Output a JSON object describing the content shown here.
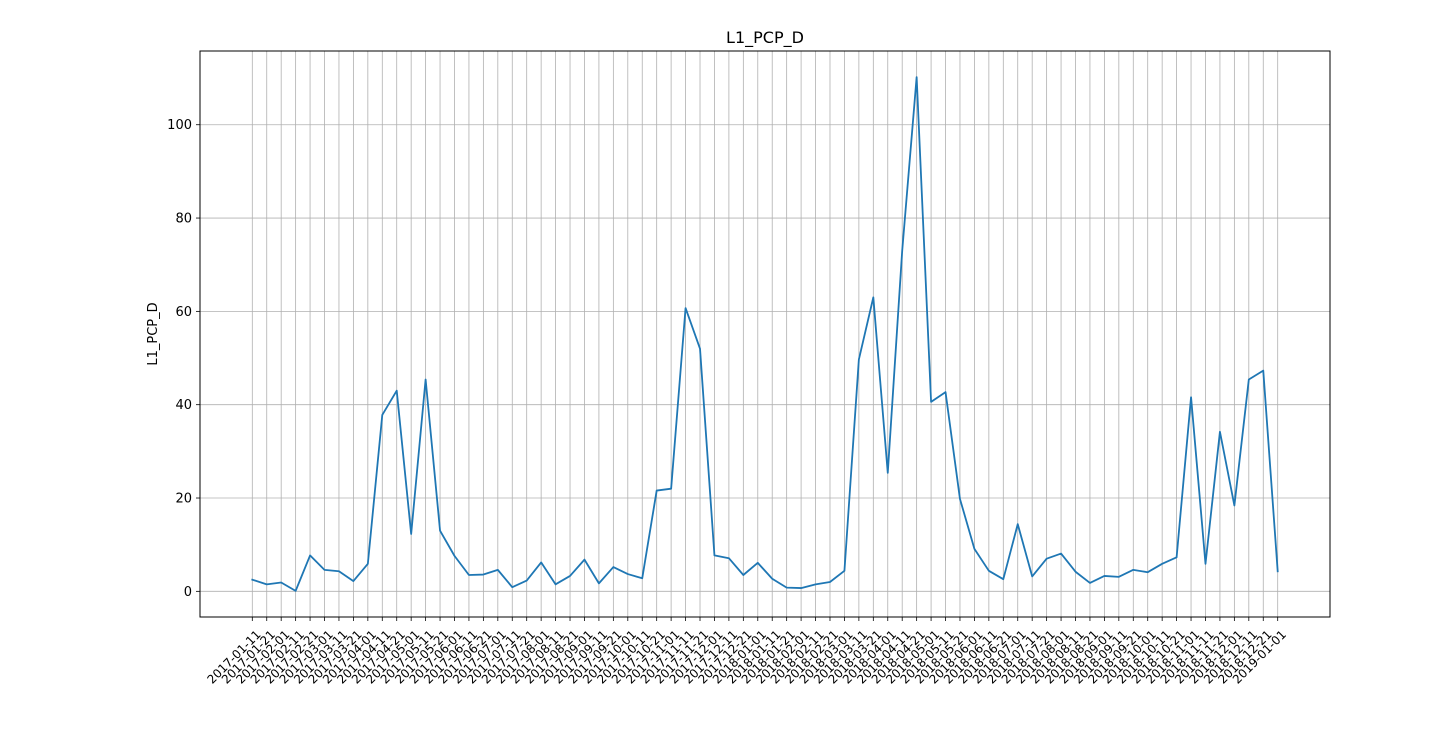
{
  "chart_data": {
    "type": "line",
    "title": "L1_PCP_D",
    "xlabel": "",
    "ylabel": "L1_PCP_D",
    "ylim": [
      -5.5,
      115.8
    ],
    "yticks": [
      0,
      20,
      40,
      60,
      80,
      100
    ],
    "grid": true,
    "line_color": "#1f77b4",
    "categories": [
      "2017-01-11",
      "2017-01-21",
      "2017-02-01",
      "2017-02-11",
      "2017-02-21",
      "2017-03-01",
      "2017-03-11",
      "2017-03-21",
      "2017-04-01",
      "2017-04-11",
      "2017-04-21",
      "2017-05-01",
      "2017-05-11",
      "2017-05-21",
      "2017-06-01",
      "2017-06-11",
      "2017-06-21",
      "2017-07-01",
      "2017-07-11",
      "2017-07-21",
      "2017-08-01",
      "2017-08-11",
      "2017-08-21",
      "2017-09-01",
      "2017-09-11",
      "2017-09-21",
      "2017-10-01",
      "2017-10-11",
      "2017-10-21",
      "2017-11-01",
      "2017-11-11",
      "2017-11-21",
      "2017-12-01",
      "2017-12-11",
      "2017-12-21",
      "2018-01-01",
      "2018-01-11",
      "2018-01-21",
      "2018-02-01",
      "2018-02-11",
      "2018-02-21",
      "2018-03-01",
      "2018-03-11",
      "2018-03-21",
      "2018-04-01",
      "2018-04-11",
      "2018-04-21",
      "2018-05-01",
      "2018-05-11",
      "2018-05-21",
      "2018-06-01",
      "2018-06-11",
      "2018-06-21",
      "2018-07-01",
      "2018-07-11",
      "2018-07-21",
      "2018-08-01",
      "2018-08-11",
      "2018-08-21",
      "2018-09-01",
      "2018-09-11",
      "2018-09-21",
      "2018-10-01",
      "2018-10-11",
      "2018-10-21",
      "2018-11-01",
      "2018-11-11",
      "2018-11-21",
      "2018-12-01",
      "2018-12-11",
      "2018-12-21",
      "2019-01-01"
    ],
    "series": [
      {
        "name": "",
        "values": [
          2.5,
          1.5,
          1.9,
          0.1,
          7.7,
          4.6,
          4.3,
          2.2,
          5.9,
          37.8,
          43.0,
          12.3,
          45.4,
          13.0,
          7.6,
          3.5,
          3.6,
          4.6,
          0.9,
          2.3,
          6.2,
          1.5,
          3.3,
          6.8,
          1.7,
          5.2,
          3.7,
          2.8,
          21.6,
          22.0,
          60.7,
          52.0,
          7.7,
          7.1,
          3.5,
          6.1,
          2.7,
          0.8,
          0.7,
          1.5,
          2.0,
          4.4,
          49.7,
          63.0,
          25.4,
          73.0,
          110.2,
          40.6,
          42.7,
          19.8,
          9.1,
          4.4,
          2.6,
          14.4,
          3.2,
          7.0,
          8.1,
          4.2,
          1.8,
          3.3,
          3.1,
          4.6,
          4.1,
          5.9,
          7.3,
          41.6,
          5.9,
          34.2,
          18.4,
          45.4,
          47.3,
          4.3
        ]
      }
    ]
  }
}
